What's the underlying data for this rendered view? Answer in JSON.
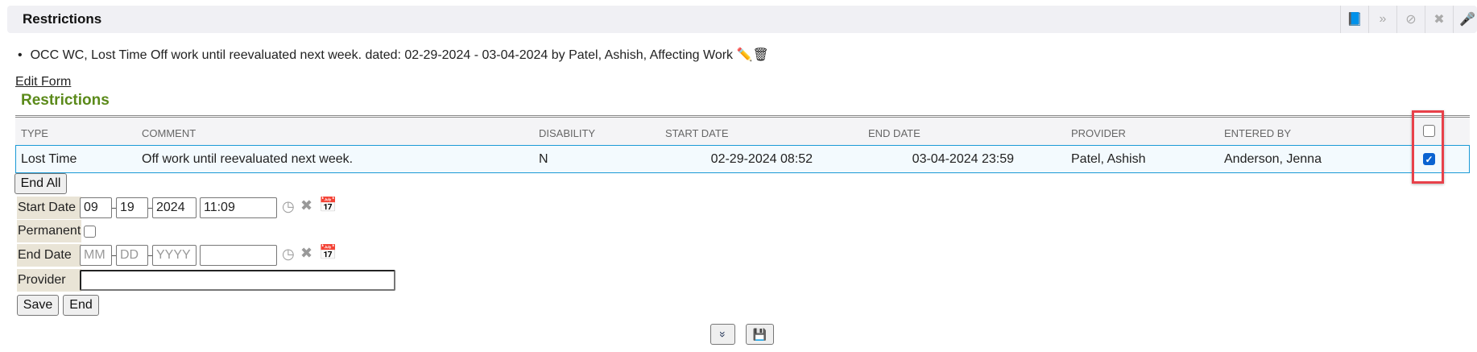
{
  "panel": {
    "title": "Restrictions",
    "toolbar_icons": [
      "book-icon",
      "double-chevron-down-icon",
      "ban-icon",
      "close-icon",
      "microphone-icon"
    ]
  },
  "summary": {
    "bullet": "•",
    "text": "OCC WC, Lost Time Off work until reevaluated next week. dated: 02-29-2024 - 03-04-2024 by Patel, Ashish, Affecting Work"
  },
  "edit_form_link": "Edit Form",
  "section_title": "Restrictions",
  "table": {
    "headers": [
      "TYPE",
      "COMMENT",
      "DISABILITY",
      "START DATE",
      "END DATE",
      "PROVIDER",
      "ENTERED BY"
    ],
    "select_all_checked": false,
    "rows": [
      {
        "type": "Lost Time",
        "comment": "Off work until reevaluated next week.",
        "disability": "N",
        "start_date": "02-29-2024 08:52",
        "end_date": "03-04-2024 23:59",
        "provider": "Patel, Ashish",
        "entered_by": "Anderson, Jenna",
        "checked": true
      }
    ]
  },
  "accent_color": "#5b8a1a",
  "highlight_color": "#e8414a",
  "form": {
    "end_all": "End All",
    "start_date": {
      "label": "Start Date",
      "mm": "09",
      "dd": "19",
      "yyyy": "2024",
      "time": "11:09"
    },
    "permanent": {
      "label": "Permanent",
      "checked": false
    },
    "end_date": {
      "label": "End Date",
      "mm_ph": "MM",
      "dd_ph": "DD",
      "yyyy_ph": "YYYY",
      "time": ""
    },
    "provider": {
      "label": "Provider",
      "value": ""
    },
    "save": "Save",
    "end": "End"
  }
}
